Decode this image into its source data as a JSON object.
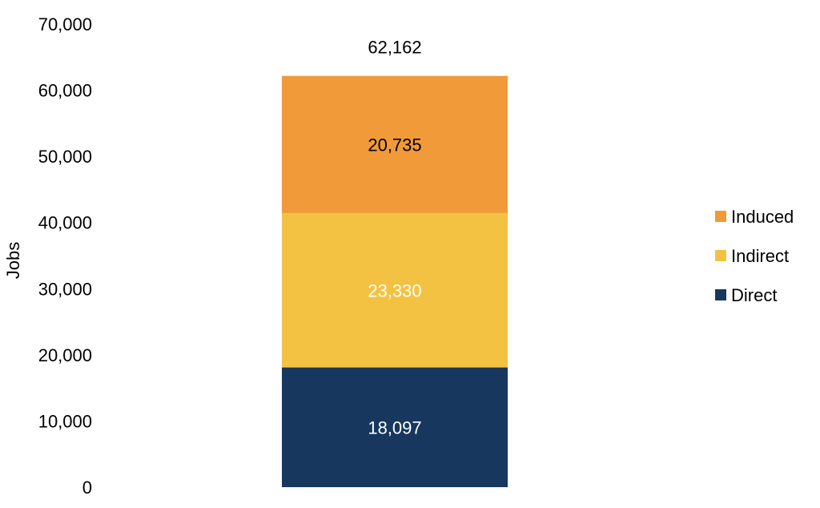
{
  "chart_data": {
    "type": "bar",
    "stacked": true,
    "categories": [
      ""
    ],
    "ylabel": "Jobs",
    "xlabel": "",
    "ylim": [
      0,
      70000
    ],
    "yticks": [
      0,
      10000,
      20000,
      30000,
      40000,
      50000,
      60000,
      70000
    ],
    "ytick_labels": [
      "0",
      "10,000",
      "20,000",
      "30,000",
      "40,000",
      "50,000",
      "60,000",
      "70,000"
    ],
    "grid": false,
    "legend_position": "right",
    "series": [
      {
        "name": "Direct",
        "values": [
          18097
        ],
        "label": "18,097",
        "color": "#17375e",
        "label_color": "#ffffff"
      },
      {
        "name": "Indirect",
        "values": [
          23330
        ],
        "label": "23,330",
        "color": "#f4c242",
        "label_color": "#ffffff"
      },
      {
        "name": "Induced",
        "values": [
          20735
        ],
        "label": "20,735",
        "color": "#f09a3a",
        "label_color": "#000000"
      }
    ],
    "total": {
      "value": 62162,
      "label": "62,162"
    },
    "legend": [
      {
        "name": "Induced",
        "color": "#f09a3a"
      },
      {
        "name": "Indirect",
        "color": "#f4c242"
      },
      {
        "name": "Direct",
        "color": "#17375e"
      }
    ]
  }
}
